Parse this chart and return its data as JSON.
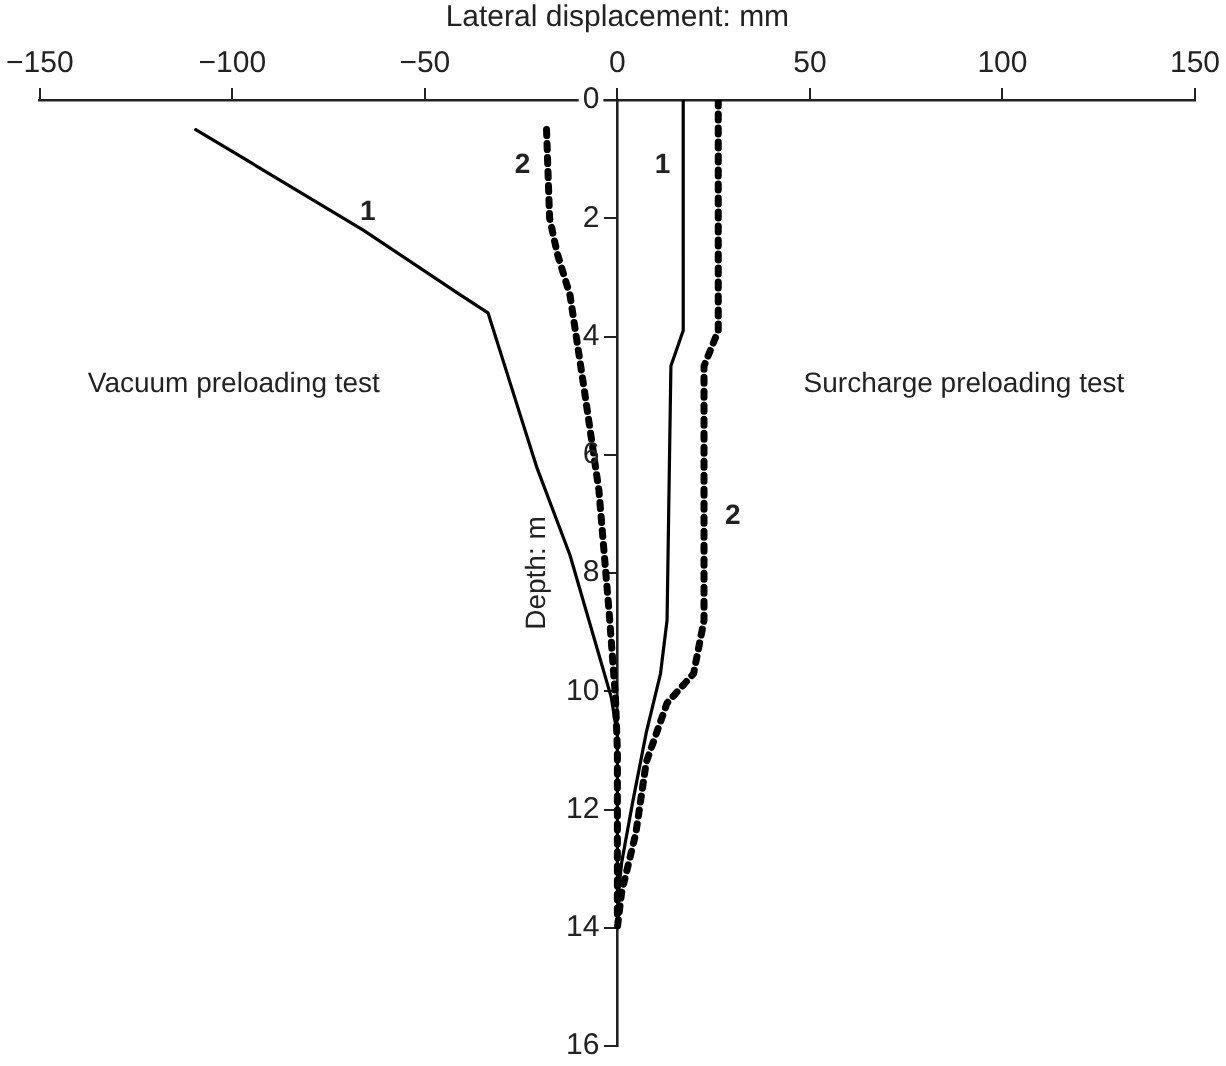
{
  "chart_data": {
    "type": "line",
    "xlabel": "Lateral displacement: mm",
    "ylabel": "Depth: m",
    "xlim": [
      -150,
      150
    ],
    "xticks": [
      -150,
      -100,
      -50,
      0,
      50,
      100,
      150
    ],
    "ylim": [
      16,
      0
    ],
    "yticks": [
      0,
      2,
      4,
      6,
      8,
      10,
      12,
      14,
      16
    ],
    "grid": false,
    "legend": false,
    "marker": "none",
    "series": [
      {
        "color": "#000000",
        "line_style": "solid",
        "x": [
          -109.5,
          -66,
          -40.7,
          -33.6,
          -21,
          -12.3,
          -1.6,
          0,
          0
        ],
        "values": [
          0.5,
          2.2,
          3.3,
          3.6,
          6.2,
          7.7,
          10.1,
          10.75,
          13.5
        ]
      },
      {
        "color": "#000000",
        "line_style": "dotted",
        "x": [
          -18.4,
          -17.6,
          -15.6,
          -12.3,
          -8.6,
          -4.8,
          -2.1,
          -0.5,
          0,
          0
        ],
        "values": [
          0.5,
          2.0,
          2.6,
          3.3,
          4.9,
          6.6,
          8.7,
          10.1,
          11,
          13.8
        ]
      },
      {
        "color": "#000000",
        "line_style": "solid",
        "x": [
          17.1,
          17.1,
          13.9,
          12.9,
          11.2,
          7.5,
          3.9,
          1.1,
          0.3
        ],
        "values": [
          0,
          3.9,
          4.5,
          8.8,
          9.7,
          10.7,
          11.9,
          12.9,
          13.4
        ]
      },
      {
        "color": "#000000",
        "line_style": "dotted",
        "x": [
          26.2,
          26.2,
          22.5,
          22.5,
          19.8,
          12.9,
          7.5,
          4.8,
          1.1,
          0
        ],
        "values": [
          0,
          3.9,
          4.5,
          8.8,
          9.7,
          10.2,
          11.2,
          12.4,
          13.4,
          14
        ]
      }
    ],
    "annotations": [
      "1",
      "2",
      "1",
      "2",
      "Vacuum preloading test",
      "Surcharge preloading test"
    ]
  }
}
